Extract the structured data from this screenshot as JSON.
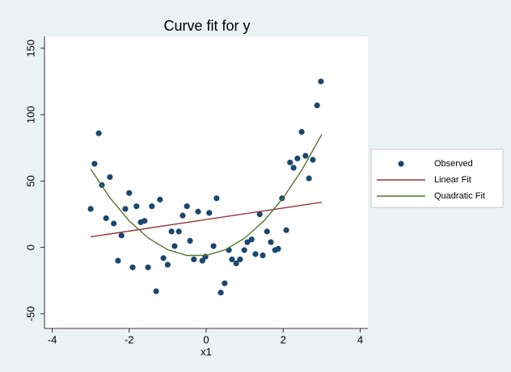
{
  "chart_data": {
    "type": "scatter",
    "title": "Curve fit for y",
    "x_label": "x1",
    "xlim": [
      -4.2,
      4.2
    ],
    "ylim": [
      -61,
      159
    ],
    "xticks": [
      -4,
      -2,
      0,
      2,
      4
    ],
    "yticks": [
      -50,
      0,
      50,
      100,
      150
    ],
    "legend": "right",
    "series": [
      {
        "name": "Observed",
        "type": "scatter",
        "color": "#1a476f",
        "x": [
          -3.0,
          -2.9,
          -2.79,
          -2.71,
          -2.6,
          -2.5,
          -2.4,
          -2.29,
          -2.2,
          -2.1,
          -2.0,
          -1.91,
          -1.81,
          -1.7,
          -1.6,
          -1.51,
          -1.41,
          -1.3,
          -1.2,
          -1.11,
          -1.0,
          -0.9,
          -0.82,
          -0.71,
          -0.61,
          -0.5,
          -0.42,
          -0.32,
          -0.21,
          -0.1,
          -0.02,
          0.08,
          0.19,
          0.27,
          0.38,
          0.48,
          0.59,
          0.67,
          0.78,
          0.88,
          0.99,
          1.07,
          1.18,
          1.28,
          1.39,
          1.47,
          1.58,
          1.68,
          1.79,
          1.87,
          1.97,
          2.08,
          2.18,
          2.27,
          2.37,
          2.48,
          2.58,
          2.67,
          2.77,
          2.88,
          2.98
        ],
        "values": [
          29,
          63,
          86,
          47,
          22,
          53,
          18,
          -10,
          9,
          29,
          41,
          -15,
          31,
          19,
          20,
          -15,
          31,
          -33,
          36,
          -8,
          -13,
          12,
          1,
          12,
          24,
          31,
          5,
          -9,
          27,
          -10,
          -7,
          26,
          1,
          37,
          -34,
          -27,
          -2,
          -9,
          -12,
          -9,
          -2,
          4,
          6,
          -5,
          25,
          -6,
          12,
          4,
          -2,
          -1,
          37,
          13,
          64,
          60,
          67,
          87,
          69,
          52,
          66,
          107,
          125
        ]
      },
      {
        "name": "Linear Fit",
        "type": "line",
        "color": "#90353b",
        "x": [
          -3,
          3
        ],
        "values": [
          8,
          34
        ]
      },
      {
        "name": "Quadratic Fit",
        "type": "line",
        "color": "#55752f",
        "x": [
          -3,
          -2.5,
          -2,
          -1.5,
          -1,
          -0.5,
          0,
          0.5,
          1,
          1.5,
          2,
          2.5,
          3
        ],
        "values": [
          59.0,
          37.4,
          20.0,
          7.0,
          -1.7,
          -6.0,
          -6.0,
          -1.7,
          7.0,
          20.0,
          37.3,
          59.0,
          85.0
        ]
      }
    ]
  }
}
